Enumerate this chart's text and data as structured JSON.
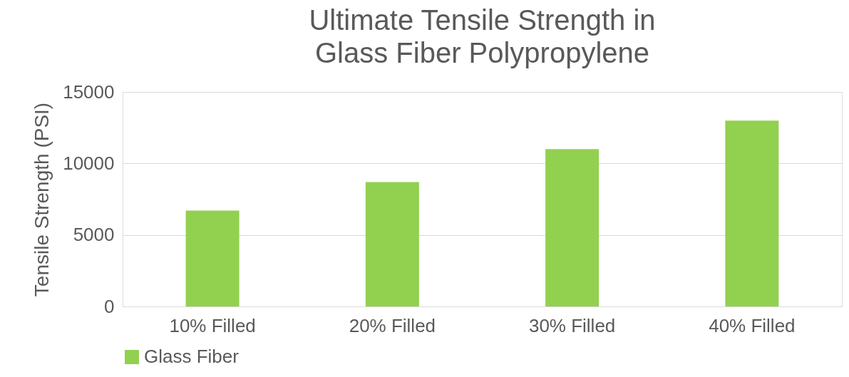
{
  "chart_data": {
    "type": "bar",
    "title": [
      "Ultimate Tensile Strength in",
      "Glass Fiber Polypropylene"
    ],
    "ylabel": "Tensile Strength (PSI)",
    "categories": [
      "10% Filled",
      "20% Filled",
      "30% Filled",
      "40% Filled"
    ],
    "series": [
      {
        "name": "Glass Fiber",
        "color": "#92d050",
        "values": [
          6700,
          8700,
          11000,
          13000
        ]
      }
    ],
    "ylim": [
      0,
      15000
    ],
    "yticks": [
      0,
      5000,
      10000,
      15000
    ],
    "grid": "y",
    "legend": "bottom"
  }
}
